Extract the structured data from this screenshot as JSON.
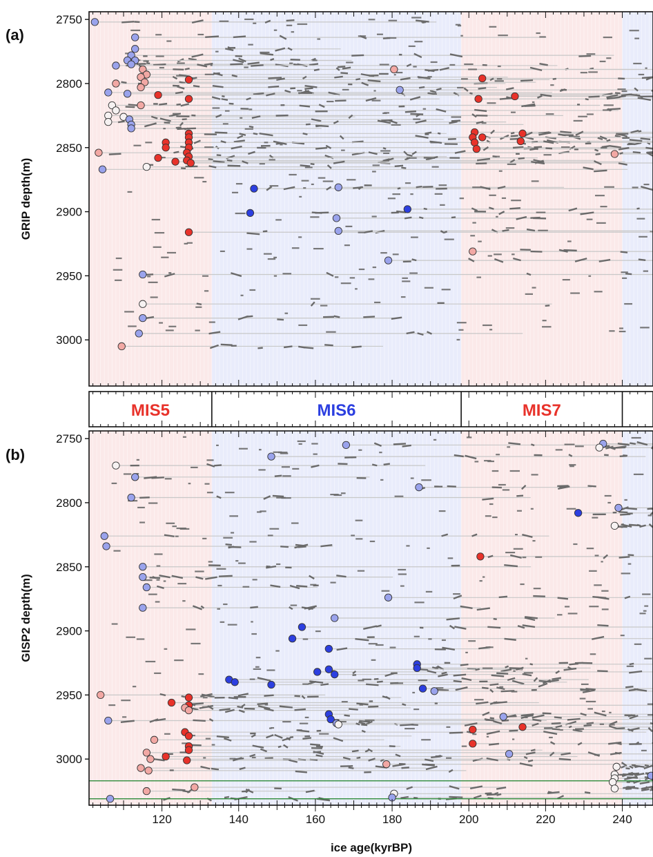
{
  "figure": {
    "panel_a_label": "(a)",
    "panel_b_label": "(b)",
    "xlabel": "ice age(kyrBP)",
    "panel_a_ylabel": "GRIP depth(m)",
    "panel_b_ylabel": "GISP2 depth(m)"
  },
  "colors": {
    "warm_dark": "#e8322a",
    "warm_light": "#f2a8a4",
    "cold_dark": "#2c3fe0",
    "cold_light": "#9aa3ec",
    "neutral": "#f6f2f2",
    "match_line": "#c8c8c8",
    "segment": "#6a6a6a",
    "warm_band": "#fbe9e9",
    "cold_band": "#e9ecfb",
    "guide_line": "#2e8b3a",
    "mis_warm_text": "#e8322a",
    "mis_cold_text": "#2c3fe0"
  },
  "mis_stages": [
    {
      "label": "MIS5",
      "x0": 101,
      "x1": 133,
      "type": "warm"
    },
    {
      "label": "MIS6",
      "x0": 133,
      "x1": 198,
      "type": "cold"
    },
    {
      "label": "MIS7",
      "x0": 198,
      "x1": 240,
      "type": "warm"
    },
    {
      "label": "",
      "x0": 240,
      "x1": 248,
      "type": "cold"
    }
  ],
  "chart_data": [
    {
      "type": "scatter",
      "panel": "a",
      "xlabel": "ice age(kyrBP)",
      "ylabel": "GRIP depth(m)",
      "xlim": [
        101,
        248
      ],
      "ylim": [
        3036,
        2744
      ],
      "xticks": [
        120,
        140,
        160,
        180,
        200,
        220,
        240
      ],
      "yticks": [
        2750,
        2800,
        2850,
        2900,
        2950,
        3000
      ],
      "grid": false,
      "points": [
        {
          "x": 102.5,
          "y": 2752,
          "c": "cold_light"
        },
        {
          "x": 113,
          "y": 2764,
          "c": "cold_light"
        },
        {
          "x": 113,
          "y": 2773,
          "c": "cold_light"
        },
        {
          "x": 112,
          "y": 2778,
          "c": "cold_light"
        },
        {
          "x": 111,
          "y": 2782,
          "c": "cold_light"
        },
        {
          "x": 113,
          "y": 2782,
          "c": "cold_light"
        },
        {
          "x": 112,
          "y": 2785,
          "c": "cold_light"
        },
        {
          "x": 108,
          "y": 2786,
          "c": "cold_light"
        },
        {
          "x": 115,
          "y": 2789,
          "c": "warm_light"
        },
        {
          "x": 116,
          "y": 2793,
          "c": "warm_light"
        },
        {
          "x": 114.5,
          "y": 2795,
          "c": "warm_light"
        },
        {
          "x": 127,
          "y": 2797,
          "c": "warm_dark"
        },
        {
          "x": 115.5,
          "y": 2799,
          "c": "warm_light"
        },
        {
          "x": 108,
          "y": 2800,
          "c": "warm_light"
        },
        {
          "x": 114.5,
          "y": 2803,
          "c": "warm_light"
        },
        {
          "x": 106,
          "y": 2807,
          "c": "cold_light"
        },
        {
          "x": 111,
          "y": 2808,
          "c": "cold_light"
        },
        {
          "x": 119,
          "y": 2809,
          "c": "warm_dark"
        },
        {
          "x": 127,
          "y": 2812,
          "c": "warm_dark"
        },
        {
          "x": 114.5,
          "y": 2817,
          "c": "warm_light"
        },
        {
          "x": 107,
          "y": 2817,
          "c": "neutral"
        },
        {
          "x": 108,
          "y": 2821,
          "c": "neutral"
        },
        {
          "x": 106,
          "y": 2825,
          "c": "neutral"
        },
        {
          "x": 110,
          "y": 2826,
          "c": "neutral"
        },
        {
          "x": 111.5,
          "y": 2828,
          "c": "cold_light"
        },
        {
          "x": 106,
          "y": 2830,
          "c": "neutral"
        },
        {
          "x": 112,
          "y": 2832,
          "c": "cold_light"
        },
        {
          "x": 112,
          "y": 2835,
          "c": "cold_light"
        },
        {
          "x": 127,
          "y": 2839,
          "c": "warm_dark"
        },
        {
          "x": 127,
          "y": 2842,
          "c": "warm_dark"
        },
        {
          "x": 121,
          "y": 2846,
          "c": "warm_dark"
        },
        {
          "x": 127,
          "y": 2846,
          "c": "warm_dark"
        },
        {
          "x": 121,
          "y": 2850,
          "c": "warm_dark"
        },
        {
          "x": 127,
          "y": 2850,
          "c": "warm_dark"
        },
        {
          "x": 103.5,
          "y": 2854,
          "c": "warm_light"
        },
        {
          "x": 126.5,
          "y": 2854,
          "c": "warm_dark"
        },
        {
          "x": 127,
          "y": 2857,
          "c": "warm_dark"
        },
        {
          "x": 119,
          "y": 2858,
          "c": "warm_dark"
        },
        {
          "x": 126.5,
          "y": 2860,
          "c": "warm_dark"
        },
        {
          "x": 123.5,
          "y": 2861,
          "c": "warm_dark"
        },
        {
          "x": 127.5,
          "y": 2862,
          "c": "warm_dark"
        },
        {
          "x": 116,
          "y": 2865,
          "c": "neutral"
        },
        {
          "x": 104.5,
          "y": 2867,
          "c": "cold_light"
        },
        {
          "x": 144,
          "y": 2882,
          "c": "cold_dark"
        },
        {
          "x": 166,
          "y": 2881,
          "c": "cold_light"
        },
        {
          "x": 184,
          "y": 2898,
          "c": "cold_dark"
        },
        {
          "x": 143,
          "y": 2901,
          "c": "cold_dark"
        },
        {
          "x": 165.5,
          "y": 2905,
          "c": "cold_light"
        },
        {
          "x": 166,
          "y": 2915,
          "c": "cold_light"
        },
        {
          "x": 127,
          "y": 2916,
          "c": "warm_dark"
        },
        {
          "x": 180.5,
          "y": 2789,
          "c": "warm_light"
        },
        {
          "x": 182,
          "y": 2805,
          "c": "cold_light"
        },
        {
          "x": 203.5,
          "y": 2796,
          "c": "warm_dark"
        },
        {
          "x": 212,
          "y": 2810,
          "c": "warm_dark"
        },
        {
          "x": 202.5,
          "y": 2812,
          "c": "warm_dark"
        },
        {
          "x": 201.5,
          "y": 2838,
          "c": "warm_dark"
        },
        {
          "x": 214,
          "y": 2839,
          "c": "warm_dark"
        },
        {
          "x": 203.5,
          "y": 2842,
          "c": "warm_dark"
        },
        {
          "x": 201,
          "y": 2842,
          "c": "warm_dark"
        },
        {
          "x": 213.5,
          "y": 2845,
          "c": "warm_dark"
        },
        {
          "x": 201.5,
          "y": 2846,
          "c": "warm_dark"
        },
        {
          "x": 202,
          "y": 2851,
          "c": "warm_dark"
        },
        {
          "x": 238,
          "y": 2855,
          "c": "warm_light"
        },
        {
          "x": 201,
          "y": 2931,
          "c": "warm_light"
        },
        {
          "x": 179,
          "y": 2938,
          "c": "cold_light"
        },
        {
          "x": 115,
          "y": 2949,
          "c": "cold_light"
        },
        {
          "x": 115,
          "y": 2972,
          "c": "neutral"
        },
        {
          "x": 115,
          "y": 2983,
          "c": "cold_light"
        },
        {
          "x": 114,
          "y": 2995,
          "c": "cold_light"
        },
        {
          "x": 109.5,
          "y": 3005,
          "c": "warm_light"
        }
      ]
    },
    {
      "type": "scatter",
      "panel": "b",
      "xlabel": "ice age(kyrBP)",
      "ylabel": "GISP2 depth(m)",
      "xlim": [
        101,
        248
      ],
      "ylim": [
        3036,
        2744
      ],
      "xticks": [
        120,
        140,
        160,
        180,
        200,
        220,
        240
      ],
      "yticks": [
        2750,
        2800,
        2850,
        2900,
        2950,
        3000
      ],
      "grid": false,
      "horizontal_lines": [
        3017,
        3031
      ],
      "points": [
        {
          "x": 168,
          "y": 2755,
          "c": "cold_light"
        },
        {
          "x": 235,
          "y": 2754,
          "c": "cold_light"
        },
        {
          "x": 234,
          "y": 2757,
          "c": "neutral"
        },
        {
          "x": 148.5,
          "y": 2764,
          "c": "cold_light"
        },
        {
          "x": 108,
          "y": 2771,
          "c": "neutral"
        },
        {
          "x": 113,
          "y": 2780,
          "c": "cold_light"
        },
        {
          "x": 187,
          "y": 2788,
          "c": "cold_light"
        },
        {
          "x": 112,
          "y": 2796,
          "c": "cold_light"
        },
        {
          "x": 239,
          "y": 2804,
          "c": "cold_light"
        },
        {
          "x": 228.5,
          "y": 2808,
          "c": "cold_dark"
        },
        {
          "x": 238,
          "y": 2818,
          "c": "neutral"
        },
        {
          "x": 105,
          "y": 2826,
          "c": "cold_light"
        },
        {
          "x": 105.5,
          "y": 2834,
          "c": "cold_light"
        },
        {
          "x": 203,
          "y": 2842,
          "c": "warm_dark"
        },
        {
          "x": 115,
          "y": 2850,
          "c": "cold_light"
        },
        {
          "x": 115,
          "y": 2858,
          "c": "cold_light"
        },
        {
          "x": 116,
          "y": 2866,
          "c": "cold_light"
        },
        {
          "x": 179,
          "y": 2874,
          "c": "cold_light"
        },
        {
          "x": 115,
          "y": 2882,
          "c": "cold_light"
        },
        {
          "x": 165,
          "y": 2890,
          "c": "cold_light"
        },
        {
          "x": 156.5,
          "y": 2897,
          "c": "cold_dark"
        },
        {
          "x": 154,
          "y": 2906,
          "c": "cold_dark"
        },
        {
          "x": 163.5,
          "y": 2914,
          "c": "cold_dark"
        },
        {
          "x": 186.5,
          "y": 2926,
          "c": "cold_dark"
        },
        {
          "x": 186.5,
          "y": 2929,
          "c": "cold_dark"
        },
        {
          "x": 163.5,
          "y": 2930,
          "c": "cold_dark"
        },
        {
          "x": 160.5,
          "y": 2932,
          "c": "cold_dark"
        },
        {
          "x": 165,
          "y": 2934,
          "c": "cold_dark"
        },
        {
          "x": 137.5,
          "y": 2938,
          "c": "cold_dark"
        },
        {
          "x": 139,
          "y": 2940,
          "c": "cold_dark"
        },
        {
          "x": 148.5,
          "y": 2942,
          "c": "cold_dark"
        },
        {
          "x": 188,
          "y": 2945,
          "c": "cold_dark"
        },
        {
          "x": 191,
          "y": 2947,
          "c": "cold_light"
        },
        {
          "x": 104,
          "y": 2950,
          "c": "warm_light"
        },
        {
          "x": 127,
          "y": 2952,
          "c": "warm_dark"
        },
        {
          "x": 122.5,
          "y": 2956,
          "c": "warm_dark"
        },
        {
          "x": 127,
          "y": 2958,
          "c": "warm_dark"
        },
        {
          "x": 126,
          "y": 2960,
          "c": "warm_light"
        },
        {
          "x": 127,
          "y": 2962,
          "c": "warm_light"
        },
        {
          "x": 163.5,
          "y": 2965,
          "c": "cold_dark"
        },
        {
          "x": 209,
          "y": 2967,
          "c": "cold_light"
        },
        {
          "x": 164,
          "y": 2969,
          "c": "cold_dark"
        },
        {
          "x": 106,
          "y": 2970,
          "c": "cold_light"
        },
        {
          "x": 165.5,
          "y": 2972,
          "c": "cold_light"
        },
        {
          "x": 166,
          "y": 2973,
          "c": "neutral"
        },
        {
          "x": 214,
          "y": 2975,
          "c": "warm_dark"
        },
        {
          "x": 201,
          "y": 2977,
          "c": "warm_dark"
        },
        {
          "x": 126,
          "y": 2979,
          "c": "warm_dark"
        },
        {
          "x": 127,
          "y": 2982,
          "c": "warm_dark"
        },
        {
          "x": 118,
          "y": 2985,
          "c": "warm_light"
        },
        {
          "x": 201,
          "y": 2988,
          "c": "warm_dark"
        },
        {
          "x": 127,
          "y": 2990,
          "c": "warm_dark"
        },
        {
          "x": 127,
          "y": 2993,
          "c": "warm_dark"
        },
        {
          "x": 116,
          "y": 2995,
          "c": "warm_light"
        },
        {
          "x": 121,
          "y": 2998,
          "c": "warm_dark"
        },
        {
          "x": 210.5,
          "y": 2996,
          "c": "cold_light"
        },
        {
          "x": 126.5,
          "y": 3001,
          "c": "warm_dark"
        },
        {
          "x": 117,
          "y": 3000,
          "c": "warm_light"
        },
        {
          "x": 178.5,
          "y": 3004,
          "c": "warm_light"
        },
        {
          "x": 238.5,
          "y": 3006,
          "c": "neutral"
        },
        {
          "x": 114.5,
          "y": 3007,
          "c": "warm_light"
        },
        {
          "x": 116.5,
          "y": 3009,
          "c": "warm_light"
        },
        {
          "x": 238,
          "y": 3012,
          "c": "neutral"
        },
        {
          "x": 247.5,
          "y": 3013,
          "c": "cold_light"
        },
        {
          "x": 238,
          "y": 3015,
          "c": "neutral"
        },
        {
          "x": 237.5,
          "y": 3018,
          "c": "neutral"
        },
        {
          "x": 238,
          "y": 3023,
          "c": "neutral"
        },
        {
          "x": 128.5,
          "y": 3022,
          "c": "warm_light"
        },
        {
          "x": 116,
          "y": 3025,
          "c": "warm_light"
        },
        {
          "x": 180.5,
          "y": 3027,
          "c": "neutral"
        },
        {
          "x": 180,
          "y": 3030,
          "c": "cold_light"
        },
        {
          "x": 106.5,
          "y": 3031,
          "c": "cold_light"
        }
      ]
    }
  ]
}
